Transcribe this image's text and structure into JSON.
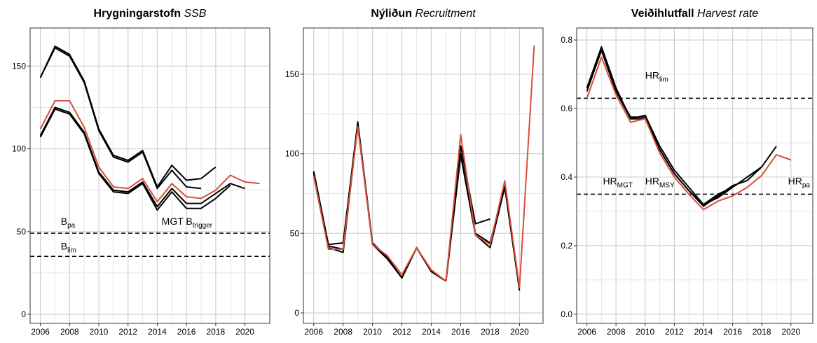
{
  "chart_data": [
    {
      "type": "line",
      "title": {
        "main": "Hrygningarstofn",
        "sub": "SSB"
      },
      "x": [
        2006,
        2007,
        2008,
        2009,
        2010,
        2011,
        2012,
        2013,
        2014,
        2015,
        2016,
        2017,
        2018,
        2019,
        2020,
        2021
      ],
      "xlim": [
        2005.3,
        2021.7
      ],
      "xticks": [
        2006,
        2008,
        2010,
        2012,
        2014,
        2016,
        2018,
        2020
      ],
      "ylim": [
        -5.5,
        173
      ],
      "yticks": [
        0,
        50,
        100,
        150
      ],
      "grid": true,
      "series": [
        {
          "color": "#000000",
          "values": [
            143,
            162,
            157,
            141,
            112,
            96,
            93,
            99,
            77,
            90,
            81,
            82,
            89,
            null,
            null,
            null
          ]
        },
        {
          "color": "#000000",
          "values": [
            143,
            161,
            156,
            140,
            111,
            95,
            92,
            98,
            76,
            87,
            77,
            76,
            null,
            null,
            null,
            null
          ]
        },
        {
          "color": "#000000",
          "values": [
            108,
            125,
            122,
            110,
            86,
            75,
            74,
            80,
            65,
            76,
            67,
            67,
            73,
            79,
            76,
            null
          ]
        },
        {
          "color": "#000000",
          "values": [
            107,
            124,
            121,
            109,
            85,
            74,
            73,
            79,
            63,
            74,
            64,
            64,
            70,
            78,
            null,
            null
          ]
        },
        {
          "color": "#d6503a",
          "values": [
            112,
            129,
            129,
            113,
            89,
            77,
            76,
            82,
            68,
            79,
            71,
            70,
            75,
            84,
            80,
            79
          ]
        }
      ],
      "hlines": [
        {
          "value": 49,
          "labels": [
            {
              "text": "B",
              "sub": "pa"
            },
            {
              "text": "MGT B",
              "sub": "trigger"
            }
          ]
        },
        {
          "value": 35,
          "labels": [
            {
              "text": "B",
              "sub": "lim"
            }
          ]
        }
      ]
    },
    {
      "type": "line",
      "title": {
        "main": "Nýliðun",
        "sub": "Recruitment"
      },
      "x": [
        2006,
        2007,
        2008,
        2009,
        2010,
        2011,
        2012,
        2013,
        2014,
        2015,
        2016,
        2017,
        2018,
        2019,
        2020,
        2021
      ],
      "xlim": [
        2005.3,
        2021.6
      ],
      "xticks": [
        2006,
        2008,
        2010,
        2012,
        2014,
        2016,
        2018,
        2020
      ],
      "ylim": [
        -6.6,
        179
      ],
      "yticks": [
        0,
        50,
        100,
        150
      ],
      "grid": true,
      "series": [
        {
          "color": "#000000",
          "values": [
            89,
            43,
            44,
            120,
            44,
            35,
            22,
            41,
            26,
            20,
            105,
            56,
            59,
            null,
            null,
            null
          ]
        },
        {
          "color": "#000000",
          "values": [
            88,
            42,
            40,
            119,
            43,
            35,
            22,
            41,
            26,
            20,
            100,
            50,
            44,
            80,
            null,
            null
          ]
        },
        {
          "color": "#000000",
          "values": [
            88,
            41,
            38,
            118,
            43,
            34,
            22,
            41,
            26,
            20,
            99,
            49,
            41,
            79,
            14,
            null
          ]
        },
        {
          "color": "#d6503a",
          "values": [
            86,
            40,
            40,
            117,
            43,
            36,
            24,
            41,
            27,
            20,
            112,
            49,
            43,
            83,
            16,
            168
          ]
        }
      ],
      "hlines": []
    },
    {
      "type": "line",
      "title": {
        "main": "Veiðihlutfall",
        "sub": "Harvest rate"
      },
      "x": [
        2006,
        2007,
        2008,
        2009,
        2010,
        2011,
        2012,
        2013,
        2014,
        2015,
        2016,
        2017,
        2018,
        2019,
        2020,
        2021
      ],
      "xlim": [
        2005.3,
        2021.5
      ],
      "xticks": [
        2006,
        2008,
        2010,
        2012,
        2014,
        2016,
        2018,
        2020
      ],
      "ylim": [
        -0.027,
        0.835
      ],
      "yticks": [
        {
          "value": 0,
          "label": "0.0"
        },
        0.2,
        0.4,
        0.6,
        0.8
      ],
      "grid": true,
      "series": [
        {
          "color": "#000000",
          "values": [
            0.66,
            0.78,
            0.66,
            0.57,
            0.58,
            0.49,
            0.42,
            0.37,
            0.32,
            0.35,
            0.37,
            0.4,
            0.43,
            0.49,
            null,
            null
          ]
        },
        {
          "color": "#000000",
          "values": [
            0.66,
            0.77,
            0.65,
            0.575,
            0.575,
            0.48,
            0.41,
            0.36,
            0.315,
            0.345,
            0.375,
            0.39,
            0.43,
            null,
            null,
            null
          ]
        },
        {
          "color": "#000000",
          "values": [
            0.65,
            0.77,
            0.65,
            0.57,
            0.57,
            0.48,
            0.41,
            0.36,
            0.32,
            0.34,
            0.37,
            null,
            null,
            null,
            null,
            null
          ]
        },
        {
          "color": "#d6503a",
          "values": [
            0.63,
            0.75,
            0.64,
            0.56,
            0.57,
            0.47,
            0.4,
            0.35,
            0.305,
            0.33,
            0.345,
            0.37,
            0.405,
            0.465,
            0.45,
            null
          ]
        }
      ],
      "hlines": [
        {
          "value": 0.63,
          "labels": [
            {
              "text": "HR",
              "sub": "lim"
            }
          ]
        },
        {
          "value": 0.35,
          "labels": [
            {
              "text": "HR",
              "sub": "MGT"
            },
            {
              "text": "HR",
              "sub": "MSY"
            },
            {
              "text": "HR",
              "sub": "pa"
            }
          ]
        }
      ]
    }
  ]
}
